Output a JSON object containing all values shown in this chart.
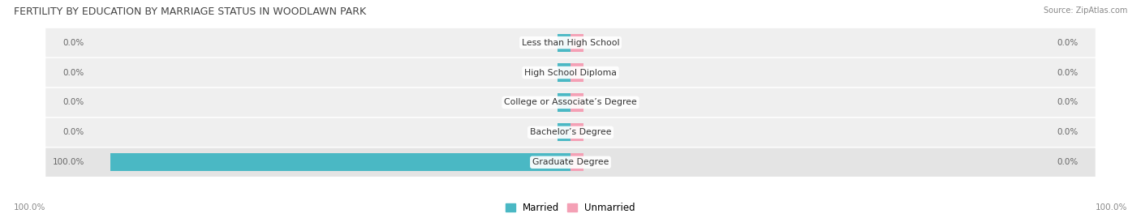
{
  "title": "FERTILITY BY EDUCATION BY MARRIAGE STATUS IN WOODLAWN PARK",
  "source": "Source: ZipAtlas.com",
  "categories": [
    "Less than High School",
    "High School Diploma",
    "College or Associate’s Degree",
    "Bachelor’s Degree",
    "Graduate Degree"
  ],
  "married_values": [
    0.0,
    0.0,
    0.0,
    0.0,
    100.0
  ],
  "unmarried_values": [
    0.0,
    0.0,
    0.0,
    0.0,
    0.0
  ],
  "married_color": "#4ab8c4",
  "unmarried_color": "#f4a0b5",
  "row_bg_even": "#efefef",
  "row_bg_odd": "#efefef",
  "row_bg_last": "#e4e4e4",
  "label_color": "#666666",
  "title_color": "#444444",
  "source_color": "#888888",
  "axis_label_color": "#888888",
  "fig_bg_color": "#ffffff",
  "bar_height": 0.6,
  "max_value": 100.0,
  "stub_size": 2.8,
  "left_axis_label": "100.0%",
  "right_axis_label": "100.0%",
  "legend_married": "Married",
  "legend_unmarried": "Unmarried"
}
